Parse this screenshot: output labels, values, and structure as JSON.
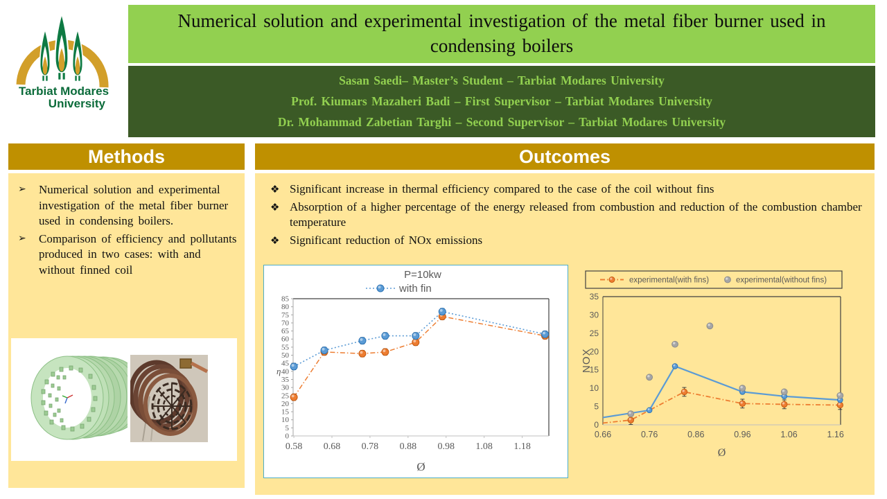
{
  "logo": {
    "line1": "Tarbiat Modares",
    "line2": "University"
  },
  "header": {
    "title": "Numerical solution and experimental investigation of the metal fiber burner used in condensing boilers",
    "authors": [
      "Sasan Saedi– Master’s Student – Tarbiat Modares University",
      "Prof. Kiumars Mazaheri Badi – First Supervisor – Tarbiat Modares University",
      "Dr. Mohammad Zabetian Targhi – Second Supervisor – Tarbiat Modares University"
    ]
  },
  "methods": {
    "header": "Methods",
    "bullet_char": "➢",
    "items": [
      "Numerical solution and experimental investigation  of the metal fiber burner used in condensing boilers.",
      "Comparison of efficiency and pollutants produced in two cases: with and without finned coil"
    ]
  },
  "outcomes": {
    "header": "Outcomes",
    "bullet_char": "❖",
    "items": [
      "Significant increase in thermal efficiency compared to the case of the coil without fins",
      "Absorption of a higher percentage of the energy released from combustion and reduction of the combustion chamber temperature",
      "Significant reduction of NOx emissions"
    ]
  },
  "colors": {
    "light_green": "#92D050",
    "dark_green": "#3B5A26",
    "gold": "#BF9000",
    "panel_yellow": "#FFE699",
    "chart_border_teal": "#4BACC6",
    "series_blue": "#5B9BD5",
    "series_orange": "#ED7D31",
    "series_gray": "#A6A6A6",
    "chart_text": "#595959"
  },
  "chart_data": [
    {
      "id": "efficiency-vs-phi",
      "type": "line",
      "title": "P=10kw",
      "xlabel": "Ø",
      "ylabel": "η",
      "xlim": [
        0.578,
        1.25
      ],
      "ylim": [
        0,
        85
      ],
      "xticks": [
        0.58,
        0.68,
        0.78,
        0.88,
        0.98,
        1.08,
        1.18
      ],
      "ytick_step": 5,
      "grid": false,
      "legend_position": "top-center",
      "legend": [
        {
          "label": "with fin"
        }
      ],
      "series": [
        {
          "name": "with fin",
          "color": "#5B9BD5",
          "edge": "#2E75B6",
          "line": "dotted",
          "width": 1.6,
          "r": 5,
          "x": [
            0.58,
            0.66,
            0.76,
            0.82,
            0.9,
            0.97,
            1.24
          ],
          "y": [
            43,
            53,
            59,
            62,
            62,
            77,
            63
          ],
          "err": 2,
          "err_from": 0,
          "marker_from": 0
        },
        {
          "name": "unlabeled (orange)",
          "color": "#ED7D31",
          "edge": "#C55A11",
          "line": "dashdot",
          "width": 1.5,
          "r": 5,
          "x": [
            0.58,
            0.66,
            0.76,
            0.82,
            0.9,
            0.97,
            1.24
          ],
          "y": [
            24,
            52,
            51,
            52,
            58,
            74,
            62
          ],
          "err": 2,
          "err_from": 0,
          "marker_from": 0
        }
      ]
    },
    {
      "id": "nox-vs-phi",
      "type": "line+scatter",
      "title": "",
      "xlabel": "Ø",
      "ylabel": "NOX",
      "xlim": [
        0.66,
        1.171
      ],
      "ylim": [
        0,
        35
      ],
      "xticks": [
        0.66,
        0.76,
        0.86,
        0.96,
        1.06,
        1.16
      ],
      "ytick_step": 5,
      "grid": false,
      "legend_position": "top-box",
      "legend": [
        {
          "label": "experimental(with fins)"
        },
        {
          "label": "experimental(without fins)"
        }
      ],
      "series": [
        {
          "name": "with fins (solid line)",
          "color": "#5B9BD5",
          "edge": "#2E75B6",
          "line": "solid",
          "width": 2.2,
          "r": 3.8,
          "x": [
            0.66,
            0.76,
            0.815,
            0.96,
            1.05,
            1.17
          ],
          "y": [
            2,
            4,
            16,
            9,
            7.8,
            6.8
          ],
          "marker_from": 1
        },
        {
          "name": "experimental(with fins)",
          "color": "#ED7D31",
          "edge": "#C55A11",
          "line": "dashdot",
          "width": 1.8,
          "r": 4.2,
          "x": [
            0.66,
            0.72,
            0.835,
            0.96,
            1.05,
            1.17
          ],
          "y": [
            0.5,
            1.3,
            9,
            5.8,
            5.6,
            5.4
          ],
          "err": 1.2,
          "err_from": 1,
          "marker_from": 1
        },
        {
          "name": "experimental(without fins)",
          "color": "#A6A6A6",
          "edge": "#8C8C8C",
          "line": "none",
          "width": 0,
          "r": 4.4,
          "x": [
            0.72,
            0.76,
            0.815,
            0.89,
            0.96,
            1.05,
            1.17
          ],
          "y": [
            3,
            13,
            22,
            27,
            10,
            9,
            8
          ],
          "marker_from": 0
        }
      ]
    }
  ]
}
